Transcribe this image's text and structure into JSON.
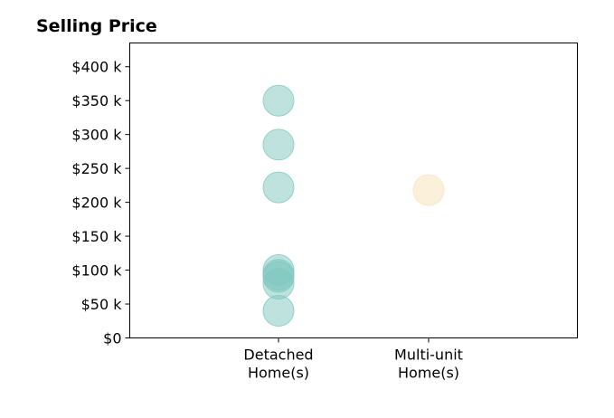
{
  "chart_data": {
    "type": "scatter",
    "title": "Selling Price",
    "xlabel": "",
    "ylabel": "",
    "categories": [
      [
        "Detached",
        "Home(s)"
      ],
      [
        "Multi-unit",
        "Home(s)"
      ]
    ],
    "yticks": [
      0,
      50000,
      100000,
      150000,
      200000,
      250000,
      300000,
      350000,
      400000
    ],
    "ytick_labels": [
      "$0",
      "$50 k",
      "$100 k",
      "$150 k",
      "$200 k",
      "$250 k",
      "$300 k",
      "$350 k",
      "$400 k"
    ],
    "ylim": [
      0,
      435000
    ],
    "grid": false,
    "series": [
      {
        "category": 0,
        "color": "#7ec8bf",
        "values": [
          350000,
          285000,
          222000,
          100000,
          93000,
          90000,
          80000,
          40000
        ]
      },
      {
        "category": 1,
        "color": "#f8e4b8",
        "values": [
          218000
        ]
      }
    ]
  }
}
